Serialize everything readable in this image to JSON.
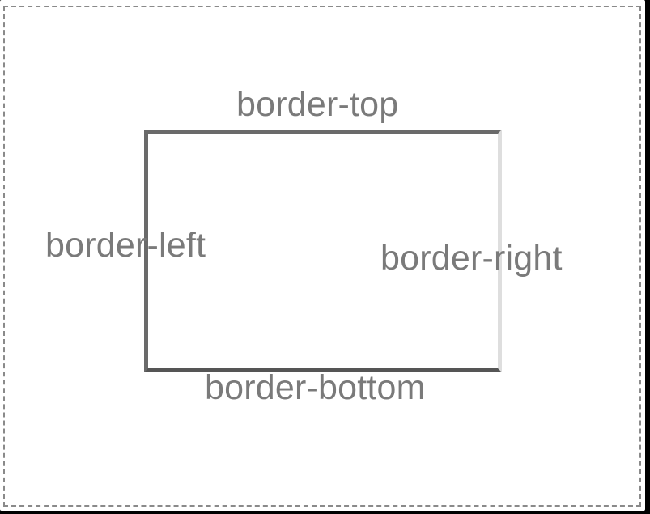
{
  "labels": {
    "top": "border-top",
    "left": "border-left",
    "right": "border-right",
    "bottom": "border-bottom"
  },
  "colors": {
    "background": "#ffffff",
    "outline": "#8a8a8a",
    "border_top": "#6a6a6a",
    "border_left": "#6a6a6a",
    "border_bottom": "#555555",
    "border_right": "#dedede",
    "label_text": "#7a7a7a"
  }
}
